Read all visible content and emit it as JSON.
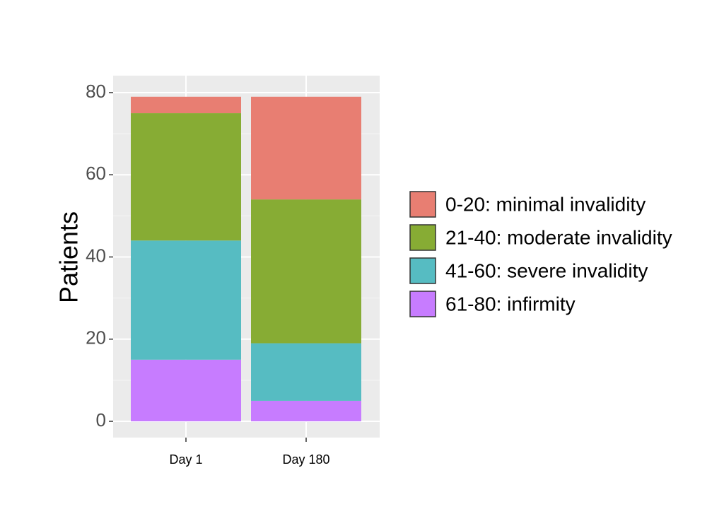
{
  "chart_data": {
    "type": "bar",
    "stacked": true,
    "categories": [
      "Day 1",
      "Day 180"
    ],
    "series": [
      {
        "name": "61-80: infirmity",
        "color": "#C77CFF",
        "values": [
          15,
          5
        ]
      },
      {
        "name": "41-60: severe invalidity",
        "color": "#56BCC2",
        "values": [
          29,
          14
        ]
      },
      {
        "name": "21-40: moderate invalidity",
        "color": "#87AC34",
        "values": [
          31,
          35
        ]
      },
      {
        "name": "0-20: minimal invalidity",
        "color": "#E87E72",
        "values": [
          4,
          25
        ]
      }
    ],
    "title": "",
    "xlabel": "",
    "ylabel": "Patients",
    "ylim": [
      0,
      80
    ],
    "yticks": [
      0,
      20,
      40,
      60,
      80
    ],
    "grid": true,
    "panel_background": "#EBEBEB",
    "legend_position": "right",
    "legend_order": [
      "0-20: minimal invalidity",
      "21-40: moderate invalidity",
      "41-60: severe invalidity",
      "61-80: infirmity"
    ]
  }
}
